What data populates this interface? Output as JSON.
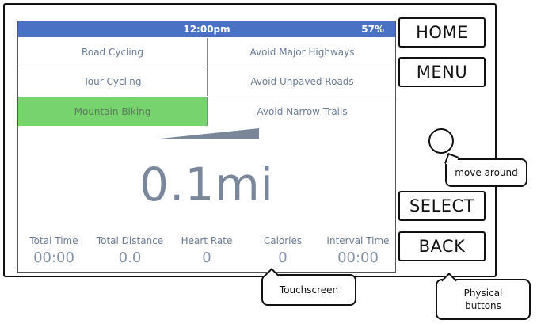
{
  "status": {
    "time": "12:00pm",
    "battery": "57%"
  },
  "options": {
    "left": [
      "Road Cycling",
      "Tour Cycling",
      "Mountain Biking"
    ],
    "right": [
      "Avoid Major Highways",
      "Avoid Unpaved Roads",
      "Avoid Narrow Trails"
    ],
    "selected_left": "Mountain Biking"
  },
  "distance": "0.1mi",
  "metrics": [
    {
      "label": "Total Time",
      "value": "00:00"
    },
    {
      "label": "Total Distance",
      "value": "0.0"
    },
    {
      "label": "Heart Rate",
      "value": "0"
    },
    {
      "label": "Calories",
      "value": "0"
    },
    {
      "label": "Interval Time",
      "value": "00:00"
    }
  ],
  "buttons": {
    "home": "HOME",
    "menu": "MENU",
    "select": "SELECT",
    "back": "BACK"
  },
  "callouts": {
    "move": "move around",
    "touchscreen": "Touchscreen",
    "physical": "Physical buttons"
  },
  "colors": {
    "status_bar": "#4a72c4",
    "selected_option": "#77d36d",
    "text": "#6a7b96"
  }
}
